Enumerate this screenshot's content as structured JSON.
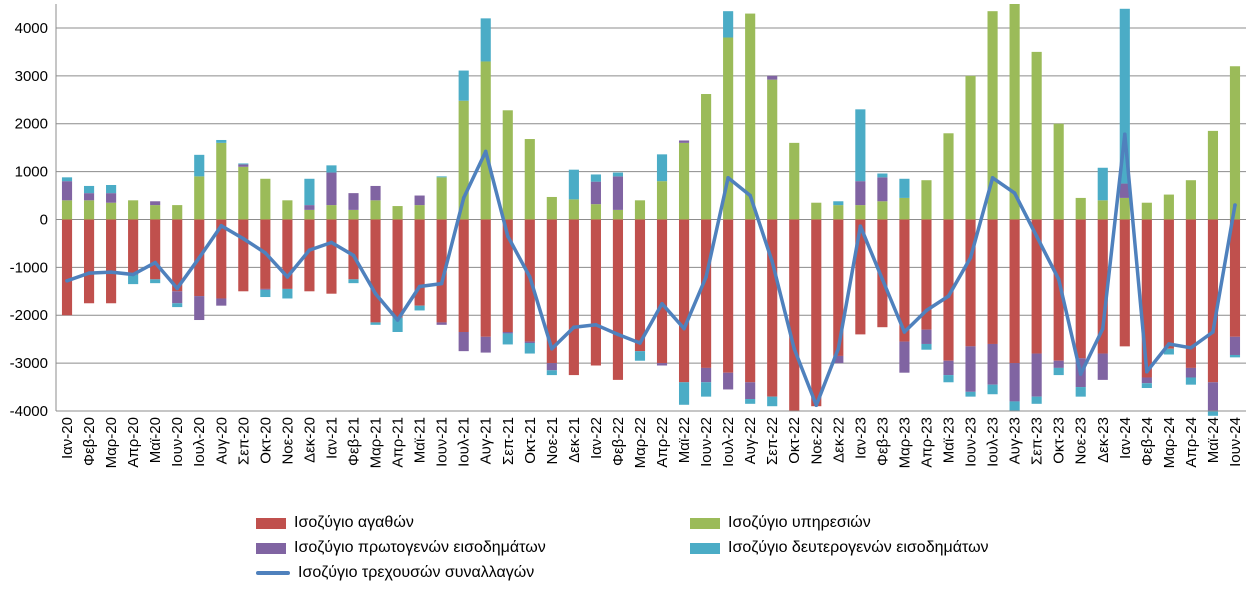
{
  "chart_data": {
    "type": "bar",
    "stacked": true,
    "title": "",
    "xlabel": "",
    "ylabel": "",
    "ylim": [
      -4000,
      4500
    ],
    "yticks": [
      -4000,
      -3000,
      -2000,
      -1000,
      0,
      1000,
      2000,
      3000,
      4000
    ],
    "grid": true,
    "legend_position": "bottom",
    "categories": [
      "Ιαν-20",
      "Φεβ-20",
      "Μαρ-20",
      "Απρ-20",
      "Μαϊ-20",
      "Ιουν-20",
      "Ιουλ-20",
      "Αυγ-20",
      "Σεπ-20",
      "Οκτ-20",
      "Νοε-20",
      "Δεκ-20",
      "Ιαν-21",
      "Φεβ-21",
      "Μαρ-21",
      "Απρ-21",
      "Μαϊ-21",
      "Ιουν-21",
      "Ιουλ-21",
      "Αυγ-21",
      "Σεπ-21",
      "Οκτ-21",
      "Νοε-21",
      "Δεκ-21",
      "Ιαν-22",
      "Φεβ-22",
      "Μαρ-22",
      "Απρ-22",
      "Μαϊ-22",
      "Ιουν-22",
      "Ιουλ-22",
      "Αυγ-22",
      "Σεπ-22",
      "Οκτ-22",
      "Νοε-22",
      "Δεκ-22",
      "Ιαν-23",
      "Φεβ-23",
      "Μαρ-23",
      "Απρ-23",
      "Μαϊ-23",
      "Ιουν-23",
      "Ιουλ-23",
      "Αυγ-23",
      "Σεπ-23",
      "Οκτ-23",
      "Νοε-23",
      "Δεκ-23",
      "Ιαν-24",
      "Φεβ-24",
      "Μαρ-24",
      "Απρ-24",
      "Μαϊ-24",
      "Ιουν-24"
    ],
    "series": [
      {
        "name": "Ισοζύγιο αγαθών",
        "color": "#c0504d",
        "values": [
          -2000,
          -1750,
          -1750,
          -1150,
          -1250,
          -1500,
          -1600,
          -1650,
          -1500,
          -1450,
          -1450,
          -1500,
          -1550,
          -1250,
          -2150,
          -2050,
          -1800,
          -2150,
          -2350,
          -2450,
          -2350,
          -2550,
          -3000,
          -3250,
          -3050,
          -3350,
          -2750,
          -3000,
          -3400,
          -3100,
          -3200,
          -3400,
          -3700,
          -4000,
          -3900,
          -2850,
          -2400,
          -2250,
          -2550,
          -2300,
          -2950,
          -2650,
          -2600,
          -3000,
          -2800,
          -2950,
          -2900,
          -2800,
          -2650,
          -3300,
          -2700,
          -3100,
          -3400,
          -2450
        ]
      },
      {
        "name": "Ισοζύγιο υπηρεσιών",
        "color": "#9bbb59",
        "values": [
          400,
          400,
          350,
          400,
          300,
          300,
          900,
          1600,
          1100,
          850,
          400,
          200,
          300,
          200,
          400,
          280,
          300,
          880,
          2480,
          3300,
          2280,
          1680,
          470,
          420,
          320,
          200,
          400,
          800,
          1600,
          2620,
          3800,
          4300,
          2920,
          1600,
          350,
          300,
          300,
          380,
          450,
          820,
          1800,
          3000,
          4350,
          4500,
          3500,
          2000,
          450,
          400,
          450,
          350,
          520,
          820,
          1850,
          3200
        ]
      },
      {
        "name": "Ισοζύγιο πρωτογενών εισοδημάτων",
        "color": "#8064a2",
        "values": [
          400,
          150,
          200,
          0,
          80,
          -250,
          -500,
          -150,
          50,
          -20,
          0,
          100,
          680,
          350,
          300,
          0,
          200,
          -50,
          -400,
          -330,
          -30,
          -30,
          -150,
          0,
          470,
          700,
          0,
          -50,
          50,
          -300,
          -350,
          -350,
          80,
          0,
          0,
          -150,
          500,
          500,
          -650,
          -300,
          -300,
          -950,
          -850,
          -800,
          -900,
          -150,
          -600,
          -550,
          300,
          -120,
          0,
          -200,
          -600,
          -380
        ]
      },
      {
        "name": "Ισοζύγιο δευτερογενών εισοδημάτων",
        "color": "#4bacc6",
        "values": [
          80,
          150,
          170,
          -200,
          -80,
          -80,
          450,
          60,
          20,
          -150,
          -200,
          550,
          150,
          -80,
          -50,
          -300,
          -100,
          20,
          630,
          900,
          -230,
          -220,
          -100,
          620,
          150,
          80,
          -200,
          560,
          -470,
          -300,
          550,
          -100,
          -200,
          0,
          0,
          80,
          1500,
          80,
          400,
          -120,
          -150,
          -100,
          -200,
          -200,
          -150,
          -150,
          -200,
          680,
          3650,
          -100,
          -120,
          -150,
          -100,
          -50
        ]
      },
      {
        "name": "Ισοζύγιο τρεχουσών συναλλαγών",
        "color": "#4f81bd",
        "kind": "line",
        "values": [
          -1280,
          -1120,
          -1100,
          -1150,
          -900,
          -1440,
          -800,
          -130,
          -400,
          -700,
          -1200,
          -640,
          -480,
          -750,
          -1550,
          -2100,
          -1400,
          -1340,
          450,
          1420,
          -350,
          -1200,
          -2700,
          -2250,
          -2200,
          -2400,
          -2580,
          -1760,
          -2280,
          -1200,
          870,
          500,
          -880,
          -2700,
          -3880,
          -2700,
          -140,
          -1250,
          -2350,
          -1900,
          -1600,
          -800,
          870,
          550,
          -350,
          -1250,
          -3230,
          -2280,
          1780,
          -3180,
          -2600,
          -2680,
          -2350,
          300
        ]
      }
    ]
  }
}
